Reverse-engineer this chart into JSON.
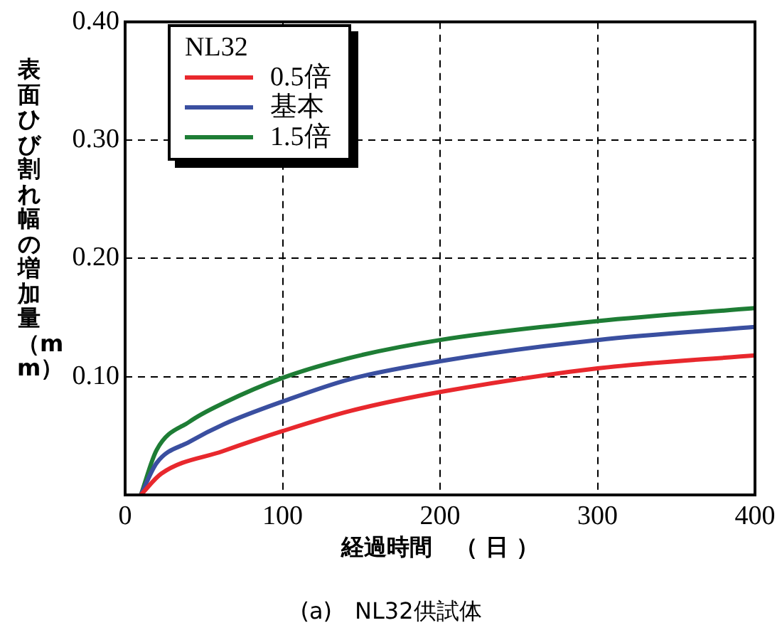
{
  "chart_data": {
    "type": "line",
    "title": "(a)　NL32供試体",
    "xlabel": "経過時間　（ 日 ）",
    "ylabel": "表面ひび割れ幅の増加量（mm）",
    "legend_title": "NL32",
    "legend": "top left",
    "grid": true,
    "xlim": [
      0,
      400
    ],
    "xticks": [
      0,
      100,
      200,
      300,
      400
    ],
    "ylim": [
      0,
      0.4
    ],
    "yticks": [
      {
        "value": 0,
        "label": null
      },
      {
        "value": 0.1,
        "label": "0.10"
      },
      {
        "value": 0.2,
        "label": "0.20"
      },
      {
        "value": 0.3,
        "label": "0.30"
      },
      {
        "value": 0.4,
        "label": "0.40"
      }
    ],
    "series": [
      {
        "name": "0.5倍",
        "color": "#e8282d",
        "x": [
          10,
          23,
          62,
          100,
          143,
          200,
          300,
          400
        ],
        "values": [
          0,
          0.018,
          0.037,
          0.054,
          0.071,
          0.087,
          0.107,
          0.118
        ]
      },
      {
        "name": "基本",
        "color": "#3a4fa0",
        "x": [
          10,
          20,
          41,
          63,
          100,
          143,
          200,
          300,
          400
        ],
        "values": [
          0,
          0.027,
          0.045,
          0.06,
          0.079,
          0.098,
          0.113,
          0.131,
          0.142
        ]
      },
      {
        "name": "1.5倍",
        "color": "#1e7d35",
        "x": [
          10,
          20,
          41,
          63,
          100,
          143,
          200,
          300,
          400
        ],
        "values": [
          0,
          0.038,
          0.062,
          0.078,
          0.099,
          0.116,
          0.131,
          0.147,
          0.158
        ]
      }
    ]
  }
}
